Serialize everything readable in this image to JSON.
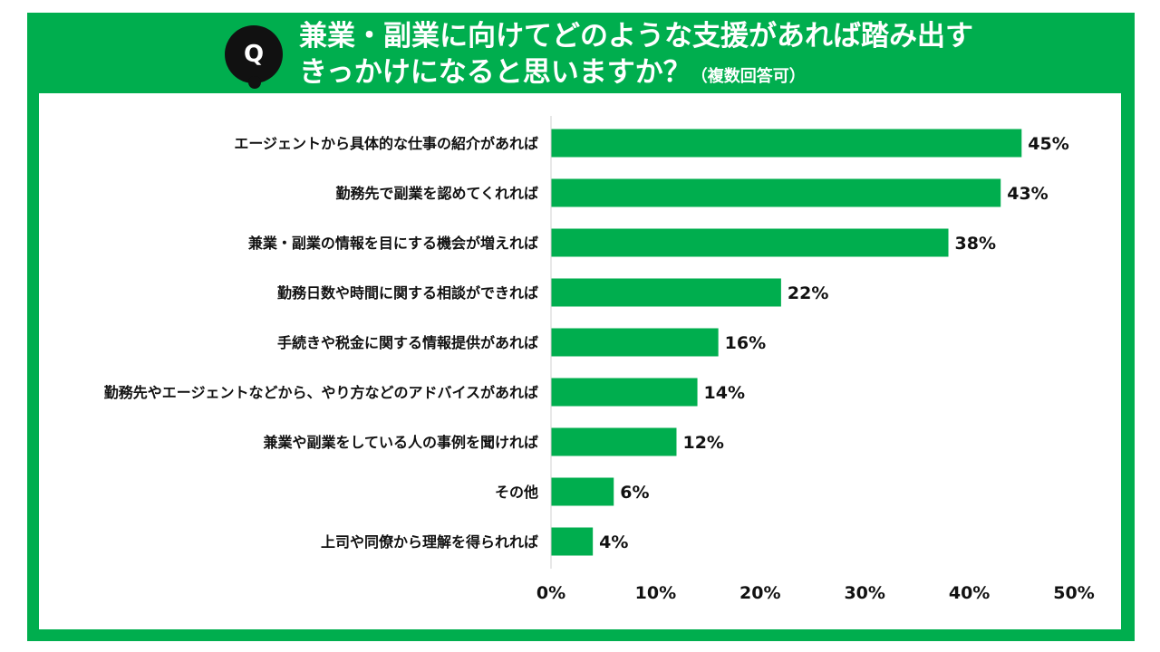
{
  "question": {
    "badge": "Q",
    "line1": "兼業・副業に向けてどのような支援があれば踏み出す",
    "line2": "きっかけになると思いますか？",
    "note": "（複数回答可）"
  },
  "chart_data": {
    "type": "bar",
    "orientation": "horizontal",
    "categories": [
      "エージェントから具体的な仕事の紹介があれば",
      "勤務先で副業を認めてくれれば",
      "兼業・副業の情報を目にする機会が増えれば",
      "勤務日数や時間に関する相談ができれば",
      "手続きや税金に関する情報提供があれば",
      "勤務先やエージェントなどから、やり方などのアドバイスがあれば",
      "兼業や副業をしている人の事例を聞ければ",
      "その他",
      "上司や同僚から理解を得られれば"
    ],
    "values": [
      45,
      43,
      38,
      22,
      16,
      14,
      12,
      6,
      4
    ],
    "value_labels": [
      "45%",
      "43%",
      "38%",
      "22%",
      "16%",
      "14%",
      "12%",
      "6%",
      "4%"
    ],
    "xlim": [
      0,
      50
    ],
    "ticks": [
      0,
      10,
      20,
      30,
      40,
      50
    ],
    "tick_labels": [
      "0%",
      "10%",
      "20%",
      "30%",
      "40%",
      "50%"
    ],
    "grid": false,
    "legend": "none",
    "bar_color": "#00ae4e"
  }
}
